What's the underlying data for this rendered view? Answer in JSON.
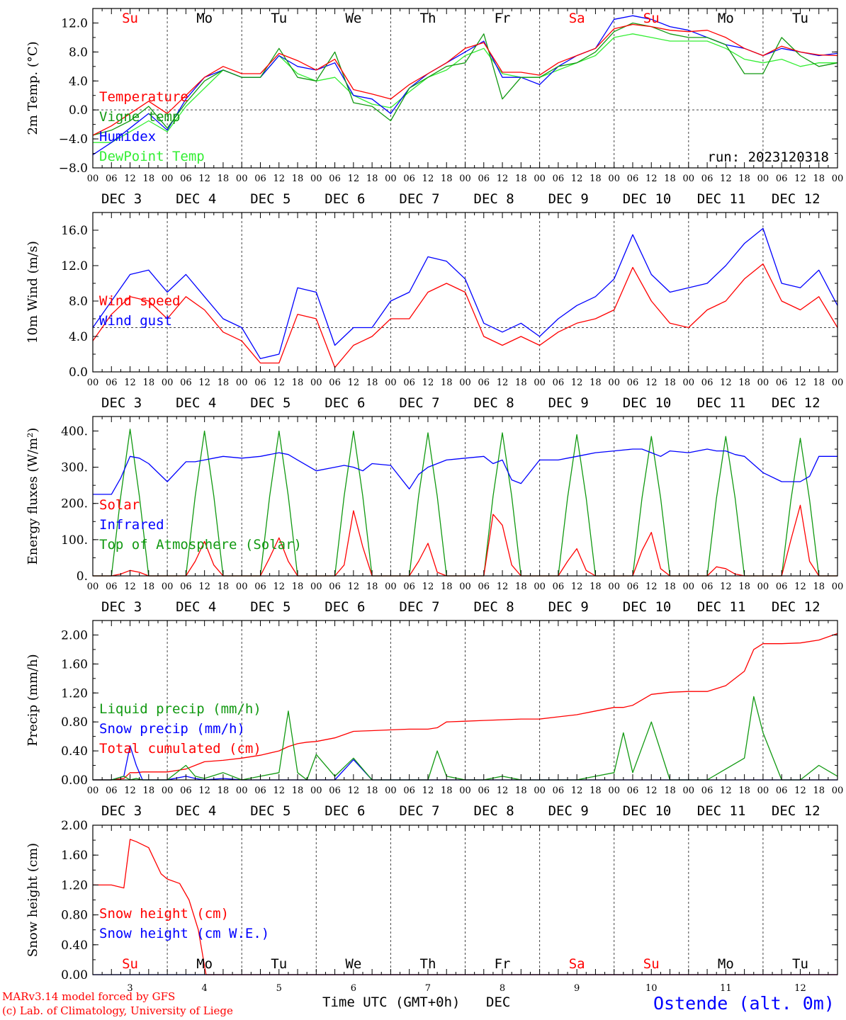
{
  "colors": {
    "red": "#ff0000",
    "darkgreen": "#119911",
    "blue": "#0000ff",
    "lightgreen": "#33ee33",
    "gridline": "#444444"
  },
  "days": {
    "weekday": [
      "Su",
      "Mo",
      "Tu",
      "We",
      "Th",
      "Fr",
      "Sa",
      "Su",
      "Mo",
      "Tu"
    ],
    "weekday_color": [
      "red",
      "black",
      "black",
      "black",
      "black",
      "black",
      "red",
      "red",
      "black",
      "black"
    ],
    "dates": [
      "DEC  3",
      "DEC  4",
      "DEC  5",
      "DEC  6",
      "DEC  7",
      "DEC  8",
      "DEC  9",
      "DEC 10",
      "DEC 11",
      "DEC 12"
    ],
    "hour_ticks": [
      "00",
      "06",
      "12",
      "18"
    ],
    "final_tick": "00",
    "day_numbers": [
      "3",
      "4",
      "5",
      "6",
      "7",
      "8",
      "9",
      "10",
      "11",
      "12"
    ]
  },
  "footer": {
    "model": "MARv3.14 model forced by GFS",
    "credit": "(c) Lab. of Climatology, University of Liege",
    "xlabel": "Time UTC (GMT+0h)",
    "month": "DEC",
    "station": "Ostende (alt. 0m)"
  },
  "chart_data": [
    {
      "type": "line",
      "ylabel": "2m Temp. (°C)",
      "ylim": [
        -8,
        14
      ],
      "yticks": [
        "-8.0",
        "-4.0",
        "0.0",
        "4.0",
        "8.0",
        "12.0"
      ],
      "ref_line": 0,
      "annotation": "run: 2023120318",
      "x_hours": [
        0,
        6,
        12,
        18,
        24,
        30,
        36,
        42,
        48,
        54,
        60,
        66,
        72,
        78,
        84,
        90,
        96,
        102,
        108,
        114,
        120,
        126,
        132,
        138,
        144,
        150,
        156,
        162,
        168,
        174,
        180,
        186,
        192,
        198,
        204,
        210,
        216,
        222,
        228,
        234,
        240
      ],
      "series": [
        {
          "name": "Temperature",
          "color": "red",
          "values": [
            -3.5,
            -2.2,
            -0.5,
            1.2,
            -0.5,
            2.0,
            4.5,
            6.0,
            5.0,
            5.0,
            7.8,
            6.8,
            5.5,
            7.0,
            2.8,
            2.2,
            1.5,
            3.5,
            5.0,
            6.5,
            8.5,
            9.3,
            5.2,
            5.2,
            4.8,
            6.5,
            7.5,
            8.5,
            11.2,
            11.8,
            11.5,
            11.0,
            10.8,
            11.0,
            10.0,
            8.5,
            7.5,
            8.8,
            8.0,
            7.6,
            7.5
          ]
        },
        {
          "name": "Vigne temp",
          "color": "darkgreen",
          "values": [
            -3.5,
            -2.8,
            -1.5,
            0.5,
            -2.5,
            1.0,
            4.0,
            5.5,
            4.5,
            4.5,
            8.5,
            4.5,
            4.0,
            8.0,
            1.0,
            0.5,
            -1.5,
            3.0,
            4.5,
            6.0,
            6.5,
            10.5,
            1.5,
            4.5,
            4.5,
            6.0,
            6.5,
            8.0,
            10.8,
            12.0,
            11.5,
            10.5,
            10.0,
            10.0,
            9.0,
            5.0,
            5.0,
            10.0,
            7.5,
            6.0,
            6.5
          ]
        },
        {
          "name": "Humidex",
          "color": "blue",
          "values": [
            -6.2,
            -4.5,
            -2.5,
            -0.5,
            -2.8,
            1.5,
            4.5,
            5.5,
            4.5,
            4.5,
            7.5,
            6.0,
            5.5,
            6.5,
            2.0,
            1.5,
            -0.5,
            3.0,
            5.0,
            6.5,
            8.0,
            9.5,
            4.5,
            4.5,
            3.5,
            6.0,
            7.5,
            8.5,
            12.5,
            13.0,
            12.5,
            11.5,
            11.0,
            10.0,
            9.0,
            8.5,
            7.5,
            8.5,
            8.0,
            7.5,
            7.8
          ]
        },
        {
          "name": "DewPoint Temp",
          "color": "lightgreen",
          "values": [
            -4.5,
            -4.5,
            -3.0,
            -1.5,
            -3.0,
            0.5,
            3.0,
            5.5,
            4.5,
            4.5,
            7.5,
            5.0,
            4.0,
            4.5,
            2.0,
            0.8,
            0.3,
            2.5,
            4.5,
            5.5,
            7.5,
            8.5,
            5.0,
            4.5,
            4.5,
            5.5,
            6.5,
            7.5,
            10.0,
            10.5,
            10.0,
            9.5,
            9.5,
            9.5,
            8.5,
            7.0,
            6.5,
            7.0,
            6.0,
            6.5,
            6.5
          ]
        }
      ]
    },
    {
      "type": "line",
      "ylabel": "10m Wind (m/s)",
      "ylim": [
        0,
        18
      ],
      "yticks": [
        "0.0",
        "4.0",
        "8.0",
        "12.0",
        "16.0"
      ],
      "ref_line": 5,
      "x_hours": [
        0,
        6,
        12,
        18,
        24,
        30,
        36,
        42,
        48,
        54,
        60,
        66,
        72,
        78,
        84,
        90,
        96,
        102,
        108,
        114,
        120,
        126,
        132,
        138,
        144,
        150,
        156,
        162,
        168,
        174,
        180,
        186,
        192,
        198,
        204,
        210,
        216,
        222,
        228,
        234,
        240
      ],
      "series": [
        {
          "name": "Wind speed",
          "color": "red",
          "values": [
            3.5,
            6.5,
            8.5,
            8.0,
            6.0,
            8.5,
            7.0,
            4.5,
            3.5,
            1.0,
            1.0,
            6.5,
            6.0,
            0.5,
            3.0,
            4.0,
            6.0,
            6.0,
            9.0,
            10.0,
            9.0,
            4.0,
            3.0,
            4.0,
            3.0,
            4.5,
            5.5,
            6.0,
            7.0,
            11.8,
            8.0,
            5.5,
            5.0,
            7.0,
            8.0,
            10.5,
            12.2,
            8.0,
            7.0,
            8.5,
            5.0
          ]
        },
        {
          "name": "Wind gust",
          "color": "blue",
          "values": [
            5.0,
            8.0,
            11.0,
            11.5,
            9.0,
            11.0,
            8.5,
            6.0,
            5.0,
            1.5,
            2.0,
            9.5,
            9.0,
            3.0,
            5.0,
            5.0,
            8.0,
            9.0,
            13.0,
            12.5,
            10.5,
            5.5,
            4.5,
            5.5,
            4.0,
            6.0,
            7.5,
            8.5,
            10.5,
            15.5,
            11.0,
            9.0,
            9.5,
            10.0,
            12.0,
            14.5,
            16.2,
            10.0,
            9.5,
            11.5,
            7.5
          ]
        }
      ]
    },
    {
      "type": "line",
      "ylabel": "Energy fluxes (W/m²)",
      "ylim": [
        0,
        440
      ],
      "yticks": [
        "0.",
        "100.",
        "200.",
        "300.",
        "400."
      ],
      "x_hours": [
        0,
        6,
        9,
        12,
        15,
        18,
        24,
        30,
        33,
        36,
        39,
        42,
        48,
        54,
        57,
        60,
        63,
        66,
        72,
        78,
        81,
        84,
        87,
        90,
        96,
        102,
        105,
        108,
        111,
        114,
        120,
        126,
        129,
        132,
        135,
        138,
        144,
        150,
        153,
        156,
        159,
        162,
        168,
        174,
        177,
        180,
        183,
        186,
        192,
        198,
        201,
        204,
        207,
        210,
        216,
        222,
        225,
        228,
        231,
        234,
        240
      ],
      "series": [
        {
          "name": "Solar",
          "color": "red",
          "values": [
            0,
            0,
            5,
            15,
            10,
            0,
            0,
            0,
            40,
            95,
            30,
            0,
            0,
            0,
            50,
            105,
            40,
            0,
            0,
            0,
            30,
            180,
            80,
            0,
            0,
            0,
            40,
            90,
            10,
            0,
            0,
            0,
            170,
            140,
            30,
            0,
            0,
            0,
            40,
            75,
            15,
            0,
            0,
            0,
            70,
            120,
            20,
            0,
            0,
            0,
            25,
            20,
            5,
            0,
            0,
            0,
            100,
            195,
            40,
            0,
            0
          ]
        },
        {
          "name": "Infrared",
          "color": "blue",
          "values": [
            225,
            225,
            270,
            330,
            325,
            310,
            260,
            315,
            315,
            320,
            325,
            330,
            325,
            330,
            335,
            340,
            335,
            320,
            290,
            300,
            305,
            300,
            290,
            310,
            305,
            240,
            280,
            300,
            310,
            320,
            325,
            330,
            310,
            320,
            265,
            255,
            320,
            320,
            325,
            330,
            335,
            340,
            345,
            350,
            350,
            340,
            330,
            345,
            340,
            350,
            345,
            345,
            335,
            330,
            285,
            260,
            260,
            260,
            275,
            330,
            330
          ]
        },
        {
          "name": "Top of Atmosphere (Solar)",
          "color": "darkgreen",
          "values": [
            0,
            0,
            220,
            405,
            220,
            0,
            0,
            0,
            220,
            400,
            220,
            0,
            0,
            0,
            220,
            400,
            220,
            0,
            0,
            0,
            220,
            400,
            220,
            0,
            0,
            0,
            220,
            395,
            220,
            0,
            0,
            0,
            220,
            395,
            220,
            0,
            0,
            0,
            215,
            390,
            215,
            0,
            0,
            0,
            215,
            385,
            215,
            0,
            0,
            0,
            215,
            385,
            215,
            0,
            0,
            0,
            210,
            380,
            210,
            0,
            0
          ]
        }
      ]
    },
    {
      "type": "line",
      "ylabel": "Precip (mm/h)",
      "ylim": [
        0,
        2.2
      ],
      "yticks": [
        "0.00",
        "0.40",
        "0.80",
        "1.20",
        "1.60",
        "2.00"
      ],
      "x_hours": [
        0,
        6,
        10,
        12,
        14,
        16,
        18,
        24,
        30,
        33,
        36,
        42,
        48,
        54,
        60,
        63,
        66,
        69,
        72,
        78,
        84,
        90,
        96,
        102,
        108,
        111,
        114,
        120,
        126,
        132,
        138,
        144,
        150,
        156,
        162,
        168,
        171,
        174,
        180,
        186,
        192,
        198,
        204,
        210,
        213,
        216,
        222,
        228,
        234,
        240
      ],
      "series": [
        {
          "name": "Liquid precip (mm/h)",
          "color": "darkgreen",
          "values": [
            0,
            0,
            0.05,
            0,
            0.02,
            0,
            0,
            0,
            0.2,
            0.05,
            0.02,
            0.1,
            0,
            0.05,
            0.1,
            0.95,
            0.1,
            0,
            0.35,
            0.05,
            0.3,
            0,
            0,
            0,
            0,
            0.4,
            0.05,
            0,
            0,
            0.05,
            0,
            0,
            0,
            0,
            0.05,
            0.1,
            0.65,
            0.1,
            0.8,
            0,
            0,
            0,
            0.15,
            0.3,
            1.15,
            0.65,
            0,
            0,
            0.2,
            0.05
          ]
        },
        {
          "name": "Snow precip (mm/h)",
          "color": "blue",
          "values": [
            0,
            0,
            0.05,
            0.47,
            0.2,
            0,
            0,
            0,
            0.05,
            0.02,
            0,
            0.02,
            0,
            0,
            0,
            0,
            0,
            0,
            0,
            0,
            0.28,
            0,
            0,
            0,
            0,
            0,
            0,
            0,
            0,
            0,
            0,
            0,
            0,
            0,
            0,
            0,
            0,
            0,
            0,
            0,
            0,
            0,
            0,
            0,
            0,
            0,
            0,
            0,
            0,
            0
          ]
        },
        {
          "name": "Total cumulated (cm)",
          "color": "red",
          "values": [
            0,
            0,
            0.02,
            0.1,
            0.1,
            0.11,
            0.11,
            0.11,
            0.15,
            0.2,
            0.25,
            0.27,
            0.3,
            0.34,
            0.4,
            0.46,
            0.5,
            0.52,
            0.53,
            0.58,
            0.67,
            0.68,
            0.69,
            0.7,
            0.7,
            0.72,
            0.8,
            0.81,
            0.82,
            0.83,
            0.84,
            0.84,
            0.87,
            0.9,
            0.95,
            1.0,
            1.0,
            1.03,
            1.18,
            1.21,
            1.22,
            1.22,
            1.3,
            1.5,
            1.8,
            1.88,
            1.88,
            1.89,
            1.93,
            2.02
          ]
        }
      ]
    },
    {
      "type": "line",
      "ylabel": "Snow height (cm)",
      "ylim": [
        0,
        2.0
      ],
      "yticks": [
        "0.00",
        "0.40",
        "0.80",
        "1.20",
        "1.60",
        "2.00"
      ],
      "x_hours": [
        0,
        6,
        10,
        12,
        14,
        18,
        22,
        24,
        28,
        31,
        34,
        36,
        36.5,
        48,
        96,
        144,
        192,
        240
      ],
      "series": [
        {
          "name": "Snow height (cm)",
          "color": "red",
          "values": [
            1.2,
            1.2,
            1.16,
            1.81,
            1.78,
            1.7,
            1.35,
            1.28,
            1.22,
            1.0,
            0.6,
            0.12,
            0,
            0,
            0,
            0,
            0,
            0
          ]
        },
        {
          "name": "Snow height (cm W.E.)",
          "color": "blue",
          "values": [
            0,
            0,
            0,
            0,
            0,
            0,
            0,
            0,
            0,
            0,
            0,
            0,
            0,
            0,
            0,
            0,
            0,
            0
          ]
        }
      ]
    }
  ]
}
